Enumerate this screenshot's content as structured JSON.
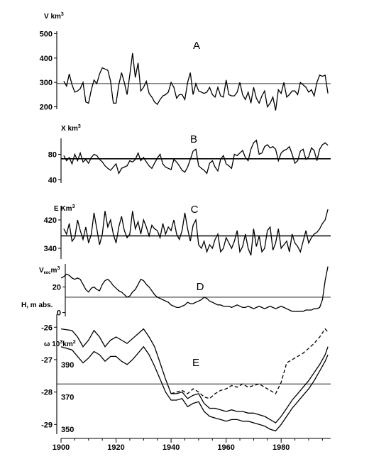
{
  "chart_data": [
    {
      "type": "line",
      "panel": "A",
      "ylabel": "V km³",
      "ylabel_main": "V km",
      "ylabel_sup": "3",
      "yticks": [
        200,
        300,
        400,
        500
      ],
      "yticks_labels": [
        "200",
        "300",
        "400",
        "500"
      ],
      "ylim": [
        190,
        510
      ],
      "reference": 295,
      "xlim": [
        1900,
        1998
      ],
      "x": [
        1901,
        1902,
        1903,
        1904,
        1905,
        1906,
        1907,
        1908,
        1909,
        1910,
        1911,
        1912,
        1913,
        1914,
        1915,
        1916,
        1917,
        1918,
        1919,
        1920,
        1921,
        1922,
        1923,
        1924,
        1925,
        1926,
        1927,
        1928,
        1929,
        1930,
        1931,
        1932,
        1933,
        1934,
        1935,
        1936,
        1937,
        1938,
        1939,
        1940,
        1941,
        1942,
        1943,
        1944,
        1945,
        1946,
        1947,
        1948,
        1949,
        1950,
        1951,
        1952,
        1953,
        1954,
        1955,
        1956,
        1957,
        1958,
        1959,
        1960,
        1961,
        1962,
        1963,
        1964,
        1965,
        1966,
        1967,
        1968,
        1969,
        1970,
        1971,
        1972,
        1973,
        1974,
        1975,
        1976,
        1977,
        1978,
        1979,
        1980,
        1981,
        1982,
        1983,
        1984,
        1985,
        1986,
        1987,
        1988,
        1989,
        1990,
        1991,
        1992,
        1993,
        1994,
        1995,
        1996,
        1997
      ],
      "values": [
        305,
        285,
        335,
        290,
        260,
        265,
        275,
        300,
        220,
        215,
        270,
        310,
        295,
        335,
        360,
        355,
        350,
        305,
        215,
        215,
        290,
        340,
        300,
        250,
        330,
        420,
        320,
        380,
        265,
        280,
        305,
        255,
        240,
        220,
        210,
        230,
        245,
        250,
        260,
        300,
        280,
        235,
        250,
        250,
        230,
        300,
        340,
        250,
        295,
        265,
        260,
        255,
        260,
        280,
        250,
        240,
        280,
        245,
        240,
        310,
        250,
        245,
        245,
        260,
        300,
        250,
        230,
        260,
        215,
        280,
        235,
        215,
        245,
        265,
        200,
        215,
        240,
        185,
        270,
        255,
        300,
        240,
        250,
        265,
        265,
        250,
        300,
        290,
        280,
        260,
        270,
        245,
        300,
        330,
        325,
        330,
        255
      ]
    },
    {
      "type": "line",
      "panel": "B",
      "ylabel": "X km³",
      "ylabel_main": "X km",
      "ylabel_sup": "3",
      "yticks": [
        40,
        80
      ],
      "yticks_labels": [
        "40",
        "80"
      ],
      "ylim": [
        35,
        105
      ],
      "reference": 73,
      "xlim": [
        1900,
        1998
      ],
      "x": [
        1901,
        1902,
        1903,
        1904,
        1905,
        1906,
        1907,
        1908,
        1909,
        1910,
        1911,
        1912,
        1913,
        1914,
        1915,
        1916,
        1917,
        1918,
        1919,
        1920,
        1921,
        1922,
        1923,
        1924,
        1925,
        1926,
        1927,
        1928,
        1929,
        1930,
        1931,
        1932,
        1933,
        1934,
        1935,
        1936,
        1937,
        1938,
        1939,
        1940,
        1941,
        1942,
        1943,
        1944,
        1945,
        1946,
        1947,
        1948,
        1949,
        1950,
        1951,
        1952,
        1953,
        1954,
        1955,
        1956,
        1957,
        1958,
        1959,
        1960,
        1961,
        1962,
        1963,
        1964,
        1965,
        1966,
        1967,
        1968,
        1969,
        1970,
        1971,
        1972,
        1973,
        1974,
        1975,
        1976,
        1977,
        1978,
        1979,
        1980,
        1981,
        1982,
        1983,
        1984,
        1985,
        1986,
        1987,
        1988,
        1989,
        1990,
        1991,
        1992,
        1993,
        1994,
        1995,
        1996,
        1997
      ],
      "values": [
        78,
        70,
        75,
        65,
        80,
        70,
        82,
        68,
        72,
        66,
        75,
        80,
        78,
        72,
        68,
        62,
        58,
        55,
        60,
        65,
        50,
        58,
        60,
        62,
        70,
        68,
        72,
        82,
        70,
        75,
        68,
        62,
        58,
        66,
        74,
        80,
        65,
        60,
        58,
        56,
        72,
        68,
        62,
        55,
        52,
        60,
        72,
        85,
        88,
        62,
        58,
        55,
        50,
        66,
        70,
        60,
        54,
        72,
        78,
        65,
        62,
        58,
        80,
        78,
        82,
        86,
        75,
        70,
        88,
        98,
        102,
        80,
        82,
        92,
        95,
        90,
        92,
        88,
        70,
        82,
        86,
        88,
        92,
        80,
        66,
        70,
        85,
        88,
        72,
        76,
        90,
        86,
        70,
        88,
        95,
        98,
        94
      ]
    },
    {
      "type": "line",
      "panel": "C",
      "ylabel": "E Km³",
      "ylabel_main": "E Km",
      "ylabel_sup": "3",
      "yticks": [
        340,
        420
      ],
      "yticks_labels": [
        "340",
        "420"
      ],
      "ylim": [
        310,
        460
      ],
      "reference": 375,
      "xlim": [
        1900,
        1998
      ],
      "x": [
        1901,
        1902,
        1903,
        1904,
        1905,
        1906,
        1907,
        1908,
        1909,
        1910,
        1911,
        1912,
        1913,
        1914,
        1915,
        1916,
        1917,
        1918,
        1919,
        1920,
        1921,
        1922,
        1923,
        1924,
        1925,
        1926,
        1927,
        1928,
        1929,
        1930,
        1931,
        1932,
        1933,
        1934,
        1935,
        1936,
        1937,
        1938,
        1939,
        1940,
        1941,
        1942,
        1943,
        1944,
        1945,
        1946,
        1947,
        1948,
        1949,
        1950,
        1951,
        1952,
        1953,
        1954,
        1955,
        1956,
        1957,
        1958,
        1959,
        1960,
        1961,
        1962,
        1963,
        1964,
        1965,
        1966,
        1967,
        1968,
        1969,
        1970,
        1971,
        1972,
        1973,
        1974,
        1975,
        1976,
        1977,
        1978,
        1979,
        1980,
        1981,
        1982,
        1983,
        1984,
        1985,
        1986,
        1987,
        1988,
        1989,
        1990,
        1991,
        1992,
        1993,
        1994,
        1995,
        1996,
        1997
      ],
      "values": [
        395,
        380,
        410,
        360,
        370,
        420,
        390,
        365,
        400,
        355,
        380,
        440,
        395,
        350,
        380,
        445,
        400,
        420,
        380,
        355,
        400,
        430,
        390,
        370,
        380,
        445,
        395,
        415,
        380,
        420,
        400,
        375,
        405,
        395,
        390,
        370,
        410,
        380,
        400,
        390,
        420,
        380,
        365,
        390,
        440,
        395,
        360,
        405,
        420,
        350,
        340,
        360,
        330,
        350,
        340,
        365,
        380,
        330,
        340,
        370,
        355,
        340,
        360,
        390,
        330,
        345,
        380,
        340,
        320,
        395,
        345,
        375,
        330,
        340,
        390,
        400,
        335,
        355,
        395,
        340,
        350,
        360,
        330,
        380,
        355,
        345,
        330,
        360,
        390,
        355,
        370,
        380,
        385,
        395,
        410,
        420,
        450
      ]
    },
    {
      "type": "line",
      "panel": "D",
      "ylabel": "V кос m³",
      "ylabel_main": "V",
      "ylabel_sub": "кос",
      "ylabel_unit": "m",
      "ylabel_sup": "3",
      "ylabel2": "H, m abs.",
      "yticks": [
        0,
        20
      ],
      "yticks_labels": [
        "0",
        "20"
      ],
      "ylim": [
        -3,
        38
      ],
      "reference": 12,
      "xlim": [
        1900,
        1998
      ],
      "x": [
        1900,
        1901,
        1902,
        1903,
        1904,
        1905,
        1906,
        1907,
        1908,
        1909,
        1910,
        1911,
        1912,
        1913,
        1914,
        1915,
        1916,
        1917,
        1918,
        1919,
        1920,
        1921,
        1922,
        1923,
        1924,
        1925,
        1926,
        1927,
        1928,
        1929,
        1930,
        1931,
        1932,
        1933,
        1934,
        1935,
        1936,
        1937,
        1938,
        1939,
        1940,
        1941,
        1942,
        1943,
        1944,
        1945,
        1946,
        1947,
        1948,
        1949,
        1950,
        1951,
        1952,
        1953,
        1954,
        1955,
        1956,
        1957,
        1958,
        1959,
        1960,
        1961,
        1962,
        1963,
        1964,
        1965,
        1966,
        1967,
        1968,
        1969,
        1970,
        1971,
        1972,
        1973,
        1974,
        1975,
        1976,
        1977,
        1978,
        1979,
        1980,
        1981,
        1982,
        1983,
        1984,
        1985,
        1986,
        1987,
        1988,
        1989,
        1990,
        1991,
        1992,
        1993,
        1994,
        1995,
        1996,
        1997
      ],
      "values": [
        27,
        28,
        30,
        29,
        27,
        26,
        27,
        26,
        22,
        18,
        16,
        19,
        20,
        18,
        17,
        22,
        25,
        26,
        24,
        21,
        19,
        17,
        16,
        14,
        12,
        13,
        16,
        18,
        22,
        26,
        25,
        22,
        20,
        17,
        14,
        12,
        11,
        10,
        9,
        8,
        6,
        5,
        4,
        4,
        5,
        6,
        8,
        7,
        7,
        8,
        9,
        10,
        12,
        11,
        9,
        8,
        7,
        6,
        6,
        5,
        5,
        5,
        4,
        5,
        6,
        5,
        4,
        4,
        5,
        4,
        3,
        4,
        5,
        4,
        3,
        4,
        5,
        4,
        3,
        4,
        5,
        4,
        3,
        2,
        1,
        1,
        1,
        1,
        1,
        2,
        2,
        2,
        3,
        3,
        4,
        10,
        25,
        36
      ]
    },
    {
      "type": "line",
      "panel": "E",
      "ylabel": "ω 10³km²",
      "ylabel_main": "ω  10",
      "ylabel_sup": "3",
      "ylabel_unit": "km",
      "ylabel_sup2": "2",
      "yticks": [
        -29,
        -28,
        -27,
        -26
      ],
      "yticks_labels": [
        "-29",
        "-28",
        "-27",
        "-26"
      ],
      "ylim": [
        -29.3,
        -25.6
      ],
      "yticks_right": [
        350,
        370,
        390
      ],
      "yticks_right_labels": [
        "350",
        "370",
        "390"
      ],
      "y2lim": [
        347,
        421
      ],
      "reference": -27.75,
      "xticks": [
        1900,
        1920,
        1940,
        1960,
        1980
      ],
      "xticks_labels": [
        "1900",
        "1920",
        "1940",
        "1960",
        "1980"
      ],
      "xlim": [
        1900,
        1998
      ],
      "series": [
        {
          "x": [
            1900,
            1904,
            1906,
            1908,
            1910,
            1912,
            1914,
            1916,
            1918,
            1920,
            1922,
            1924,
            1926,
            1928,
            1930,
            1932,
            1934,
            1936,
            1938,
            1940,
            1942,
            1944,
            1946,
            1948,
            1950,
            1952,
            1954,
            1956,
            1958,
            1960,
            1962,
            1964,
            1966,
            1968,
            1970,
            1972,
            1974,
            1976,
            1978,
            1980,
            1982,
            1984,
            1986,
            1988,
            1990,
            1992,
            1994,
            1996,
            1997
          ],
          "values": [
            -26.05,
            -26.1,
            -26.3,
            -26.6,
            -26.4,
            -26.1,
            -26.3,
            -26.6,
            -26.4,
            -26.3,
            -26.4,
            -26.5,
            -26.35,
            -26.2,
            -26.05,
            -26.3,
            -26.6,
            -27.1,
            -27.6,
            -28.05,
            -28.05,
            -28.0,
            -28.2,
            -28.1,
            -28.05,
            -28.35,
            -28.5,
            -28.5,
            -28.55,
            -28.6,
            -28.55,
            -28.6,
            -28.6,
            -28.65,
            -28.65,
            -28.7,
            -28.75,
            -28.85,
            -28.95,
            -28.75,
            -28.5,
            -28.25,
            -28.05,
            -27.85,
            -27.65,
            -27.4,
            -27.15,
            -26.85,
            -26.6
          ]
        },
        {
          "x": [
            1900,
            1904,
            1906,
            1908,
            1910,
            1912,
            1914,
            1916,
            1918,
            1920,
            1922,
            1924,
            1926,
            1928,
            1930,
            1932,
            1934,
            1936,
            1938,
            1940,
            1942,
            1944,
            1946,
            1948,
            1950,
            1952,
            1954,
            1956,
            1958,
            1960,
            1962,
            1964,
            1966,
            1968,
            1970,
            1972,
            1974,
            1976,
            1978,
            1980,
            1982,
            1984,
            1986,
            1988,
            1990,
            1992,
            1994,
            1996,
            1997
          ],
          "values": [
            -26.6,
            -26.7,
            -26.9,
            -27.1,
            -26.95,
            -26.75,
            -26.85,
            -27.05,
            -26.9,
            -26.9,
            -27.05,
            -27.15,
            -27.0,
            -26.8,
            -26.6,
            -26.85,
            -27.2,
            -27.6,
            -28.0,
            -28.25,
            -28.25,
            -28.2,
            -28.45,
            -28.35,
            -28.3,
            -28.6,
            -28.75,
            -28.8,
            -28.85,
            -28.9,
            -28.85,
            -28.85,
            -28.9,
            -28.9,
            -28.95,
            -29.0,
            -29.05,
            -29.15,
            -29.2,
            -29.0,
            -28.75,
            -28.5,
            -28.3,
            -28.1,
            -27.9,
            -27.65,
            -27.35,
            -27.05,
            -26.85
          ]
        },
        {
          "dashed": true,
          "x": [
            1940,
            1942,
            1944,
            1946,
            1948,
            1950,
            1952,
            1954,
            1956,
            1958,
            1960,
            1962,
            1964,
            1966,
            1968,
            1970,
            1972,
            1974,
            1976,
            1978,
            1980,
            1982,
            1984,
            1986,
            1988,
            1990,
            1992,
            1994,
            1996,
            1997
          ],
          "values": [
            -28.05,
            -28.0,
            -27.95,
            -28.05,
            -27.9,
            -28.0,
            -28.15,
            -28.2,
            -28.05,
            -27.95,
            -27.9,
            -27.8,
            -27.85,
            -27.75,
            -27.85,
            -27.8,
            -27.75,
            -27.85,
            -27.95,
            -28.05,
            -27.7,
            -27.1,
            -27.0,
            -26.9,
            -26.8,
            -26.65,
            -26.5,
            -26.3,
            -26.05,
            -26.15
          ]
        }
      ]
    }
  ]
}
